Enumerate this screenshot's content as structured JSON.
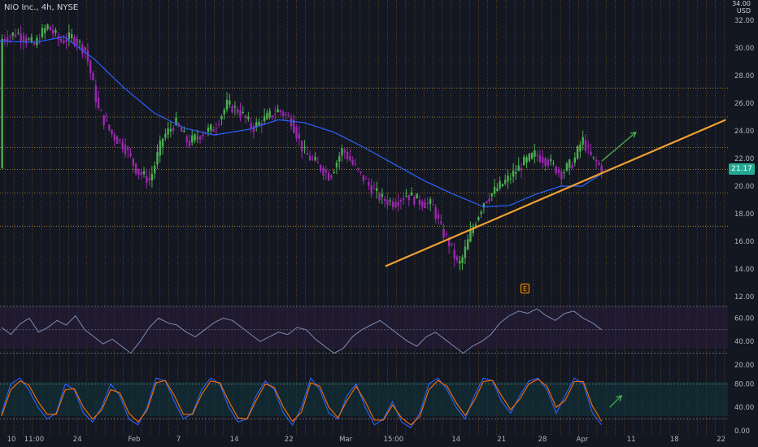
{
  "legend": {
    "symbol": "NIO Inc.",
    "interval": "4h",
    "exchange": "NYSE"
  },
  "axis_unit": {
    "line1": "34.00",
    "line2": "USD"
  },
  "last_price_label": "21.17",
  "event_marker_label": "E",
  "colors": {
    "background": "#131722",
    "bull": "#4caf50",
    "bear": "#9c27b0",
    "ma": "#2962ff",
    "trendline": "#f0a030",
    "grid": "#ff9800",
    "rsi_line": "#7e8bb6",
    "stoch_k": "#2962ff",
    "stoch_d": "#ff6d00",
    "arrow": "#4caf50"
  },
  "chart_data": [
    {
      "type": "candlestick",
      "x_tick_labels": [
        "10",
        "11:00",
        "24",
        "Feb",
        "7",
        "14",
        "22",
        "Mar",
        "15:00",
        "14",
        "21",
        "28",
        "Apr",
        "11",
        "18",
        "22"
      ],
      "y_tick_labels": [
        "12.00",
        "14.00",
        "16.00",
        "18.00",
        "20.00",
        "22.00",
        "24.00",
        "26.00",
        "28.00",
        "30.00",
        "32.00"
      ],
      "ylim": [
        12,
        33
      ],
      "last_price": 21.17,
      "close_path": [
        [
          0,
          30.6
        ],
        [
          8,
          31.1
        ],
        [
          16,
          30.2
        ],
        [
          22,
          31.6
        ],
        [
          28,
          30.5
        ],
        [
          34,
          30.8
        ],
        [
          40,
          29.8
        ],
        [
          46,
          25.5
        ],
        [
          52,
          23.8
        ],
        [
          58,
          22.9
        ],
        [
          64,
          21.1
        ],
        [
          70,
          20.4
        ],
        [
          76,
          23.5
        ],
        [
          82,
          24.6
        ],
        [
          88,
          23.1
        ],
        [
          94,
          23.8
        ],
        [
          100,
          24.2
        ],
        [
          106,
          25.9
        ],
        [
          112,
          25.4
        ],
        [
          118,
          24.2
        ],
        [
          124,
          24.9
        ],
        [
          130,
          25.5
        ],
        [
          136,
          24.8
        ],
        [
          142,
          22.4
        ],
        [
          148,
          21.6
        ],
        [
          154,
          20.7
        ],
        [
          160,
          22.7
        ],
        [
          166,
          21.3
        ],
        [
          172,
          20.1
        ],
        [
          178,
          19.1
        ],
        [
          184,
          18.8
        ],
        [
          190,
          19.4
        ],
        [
          196,
          18.9
        ],
        [
          202,
          18.6
        ],
        [
          206,
          16.9
        ],
        [
          210,
          15.8
        ],
        [
          214,
          14.2
        ],
        [
          216,
          14.8
        ],
        [
          220,
          16.7
        ],
        [
          226,
          18.9
        ],
        [
          232,
          19.8
        ],
        [
          238,
          20.6
        ],
        [
          244,
          21.6
        ],
        [
          250,
          22.3
        ],
        [
          256,
          21.8
        ],
        [
          262,
          20.9
        ],
        [
          268,
          21.8
        ],
        [
          272,
          23.4
        ],
        [
          276,
          22.1
        ],
        [
          281,
          21.3
        ]
      ],
      "ma_path": [
        [
          0,
          30.5
        ],
        [
          16,
          30.4
        ],
        [
          30,
          30.8
        ],
        [
          44,
          29.2
        ],
        [
          58,
          27.1
        ],
        [
          72,
          25.3
        ],
        [
          86,
          24.2
        ],
        [
          100,
          23.7
        ],
        [
          116,
          24.1
        ],
        [
          130,
          24.8
        ],
        [
          142,
          24.6
        ],
        [
          156,
          23.9
        ],
        [
          170,
          22.8
        ],
        [
          184,
          21.6
        ],
        [
          198,
          20.4
        ],
        [
          212,
          19.4
        ],
        [
          226,
          18.5
        ],
        [
          238,
          18.6
        ],
        [
          250,
          19.4
        ],
        [
          262,
          20.0
        ],
        [
          272,
          20.0
        ],
        [
          281,
          20.9
        ]
      ],
      "trendline": {
        "start": [
          180,
          14.2
        ],
        "end": [
          339,
          24.8
        ]
      },
      "projection_arrow": {
        "from": [
          281,
          21.8
        ],
        "to": [
          297,
          23.9
        ]
      },
      "horizontal_levels": [
        17.1,
        19.5,
        21.2,
        22.8,
        25.0,
        27.1
      ]
    },
    {
      "type": "line",
      "name": "",
      "y_tick_labels": [
        "20.00",
        "40.00",
        "60.00"
      ],
      "ylim": [
        20,
        70
      ],
      "upper_band": 70,
      "lower_band": 30,
      "mid_level": 50,
      "values": [
        52,
        46,
        55,
        60,
        48,
        52,
        58,
        54,
        62,
        50,
        44,
        38,
        42,
        36,
        30,
        40,
        52,
        60,
        56,
        54,
        48,
        44,
        50,
        56,
        60,
        58,
        52,
        46,
        40,
        44,
        48,
        46,
        52,
        50,
        42,
        36,
        30,
        34,
        44,
        50,
        54,
        58,
        52,
        46,
        40,
        36,
        44,
        48,
        42,
        36,
        30,
        36,
        40,
        46,
        56,
        62,
        66,
        64,
        68,
        62,
        58,
        64,
        66,
        60,
        56,
        50
      ]
    },
    {
      "type": "line",
      "name": "",
      "y_tick_labels": [
        "0.00",
        "40.00",
        "80.00"
      ],
      "ylim": [
        0,
        100
      ],
      "upper_band": 80,
      "lower_band": 20,
      "series": [
        {
          "name": "",
          "values": [
            30,
            80,
            90,
            70,
            40,
            20,
            30,
            80,
            70,
            30,
            15,
            40,
            80,
            60,
            20,
            10,
            40,
            90,
            85,
            50,
            20,
            30,
            70,
            90,
            80,
            40,
            15,
            20,
            60,
            85,
            70,
            30,
            10,
            40,
            90,
            70,
            30,
            20,
            60,
            80,
            40,
            10,
            20,
            50,
            15,
            5,
            30,
            80,
            90,
            70,
            40,
            20,
            60,
            90,
            85,
            50,
            30,
            60,
            85,
            90,
            70,
            30,
            60,
            90,
            80,
            30,
            10
          ]
        },
        {
          "name": "",
          "values": [
            25,
            70,
            85,
            78,
            50,
            28,
            28,
            70,
            72,
            40,
            20,
            35,
            70,
            65,
            30,
            15,
            35,
            82,
            86,
            60,
            28,
            28,
            62,
            85,
            82,
            50,
            22,
            20,
            52,
            80,
            74,
            40,
            16,
            32,
            82,
            76,
            40,
            22,
            52,
            76,
            50,
            18,
            18,
            44,
            22,
            10,
            24,
            70,
            86,
            76,
            48,
            26,
            52,
            84,
            86,
            60,
            36,
            54,
            80,
            88,
            76,
            40,
            52,
            84,
            84,
            42,
            16
          ]
        }
      ],
      "projection_arrow": {
        "from": [
          -12,
          40
        ],
        "to": [
          0,
          60
        ]
      }
    }
  ]
}
